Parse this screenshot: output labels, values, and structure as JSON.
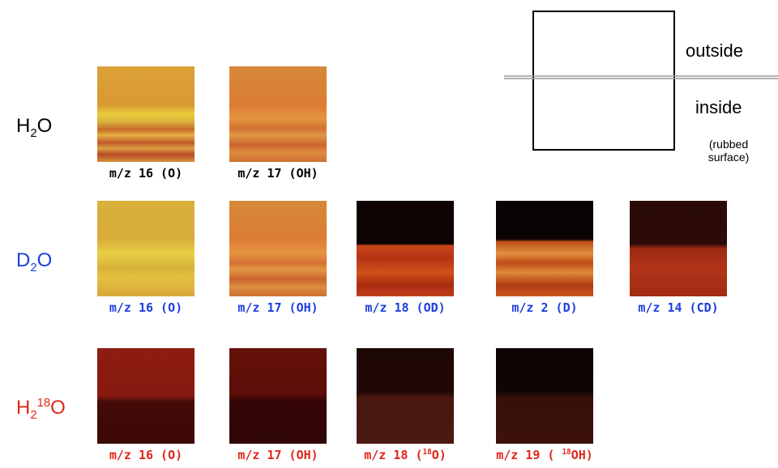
{
  "rows": [
    {
      "label": [
        "H",
        "2",
        "O"
      ],
      "captions": [
        [
          "m/z 16 (O)"
        ],
        [
          "m/z 17 (OH)"
        ]
      ]
    },
    {
      "label": [
        "D",
        "2",
        "O"
      ],
      "captions": [
        [
          "m/z 16 (O)"
        ],
        [
          "m/z 17 (OH)"
        ],
        [
          "m/z 18 (OD)"
        ],
        [
          "m/z 2 (D)"
        ],
        [
          "m/z 14 (CD)"
        ]
      ]
    },
    {
      "label": [
        "H",
        "2",
        "18",
        "O"
      ],
      "captions": [
        [
          "m/z 16 (O)"
        ],
        [
          "m/z 17 (OH)"
        ],
        [
          "m/z 18 (",
          "18",
          "O)"
        ],
        [
          "m/z 19 ( ",
          "18",
          "OH)"
        ]
      ]
    }
  ],
  "legend": {
    "outside": "outside",
    "inside": "inside",
    "note": [
      "(rubbed",
      "surface)"
    ]
  }
}
